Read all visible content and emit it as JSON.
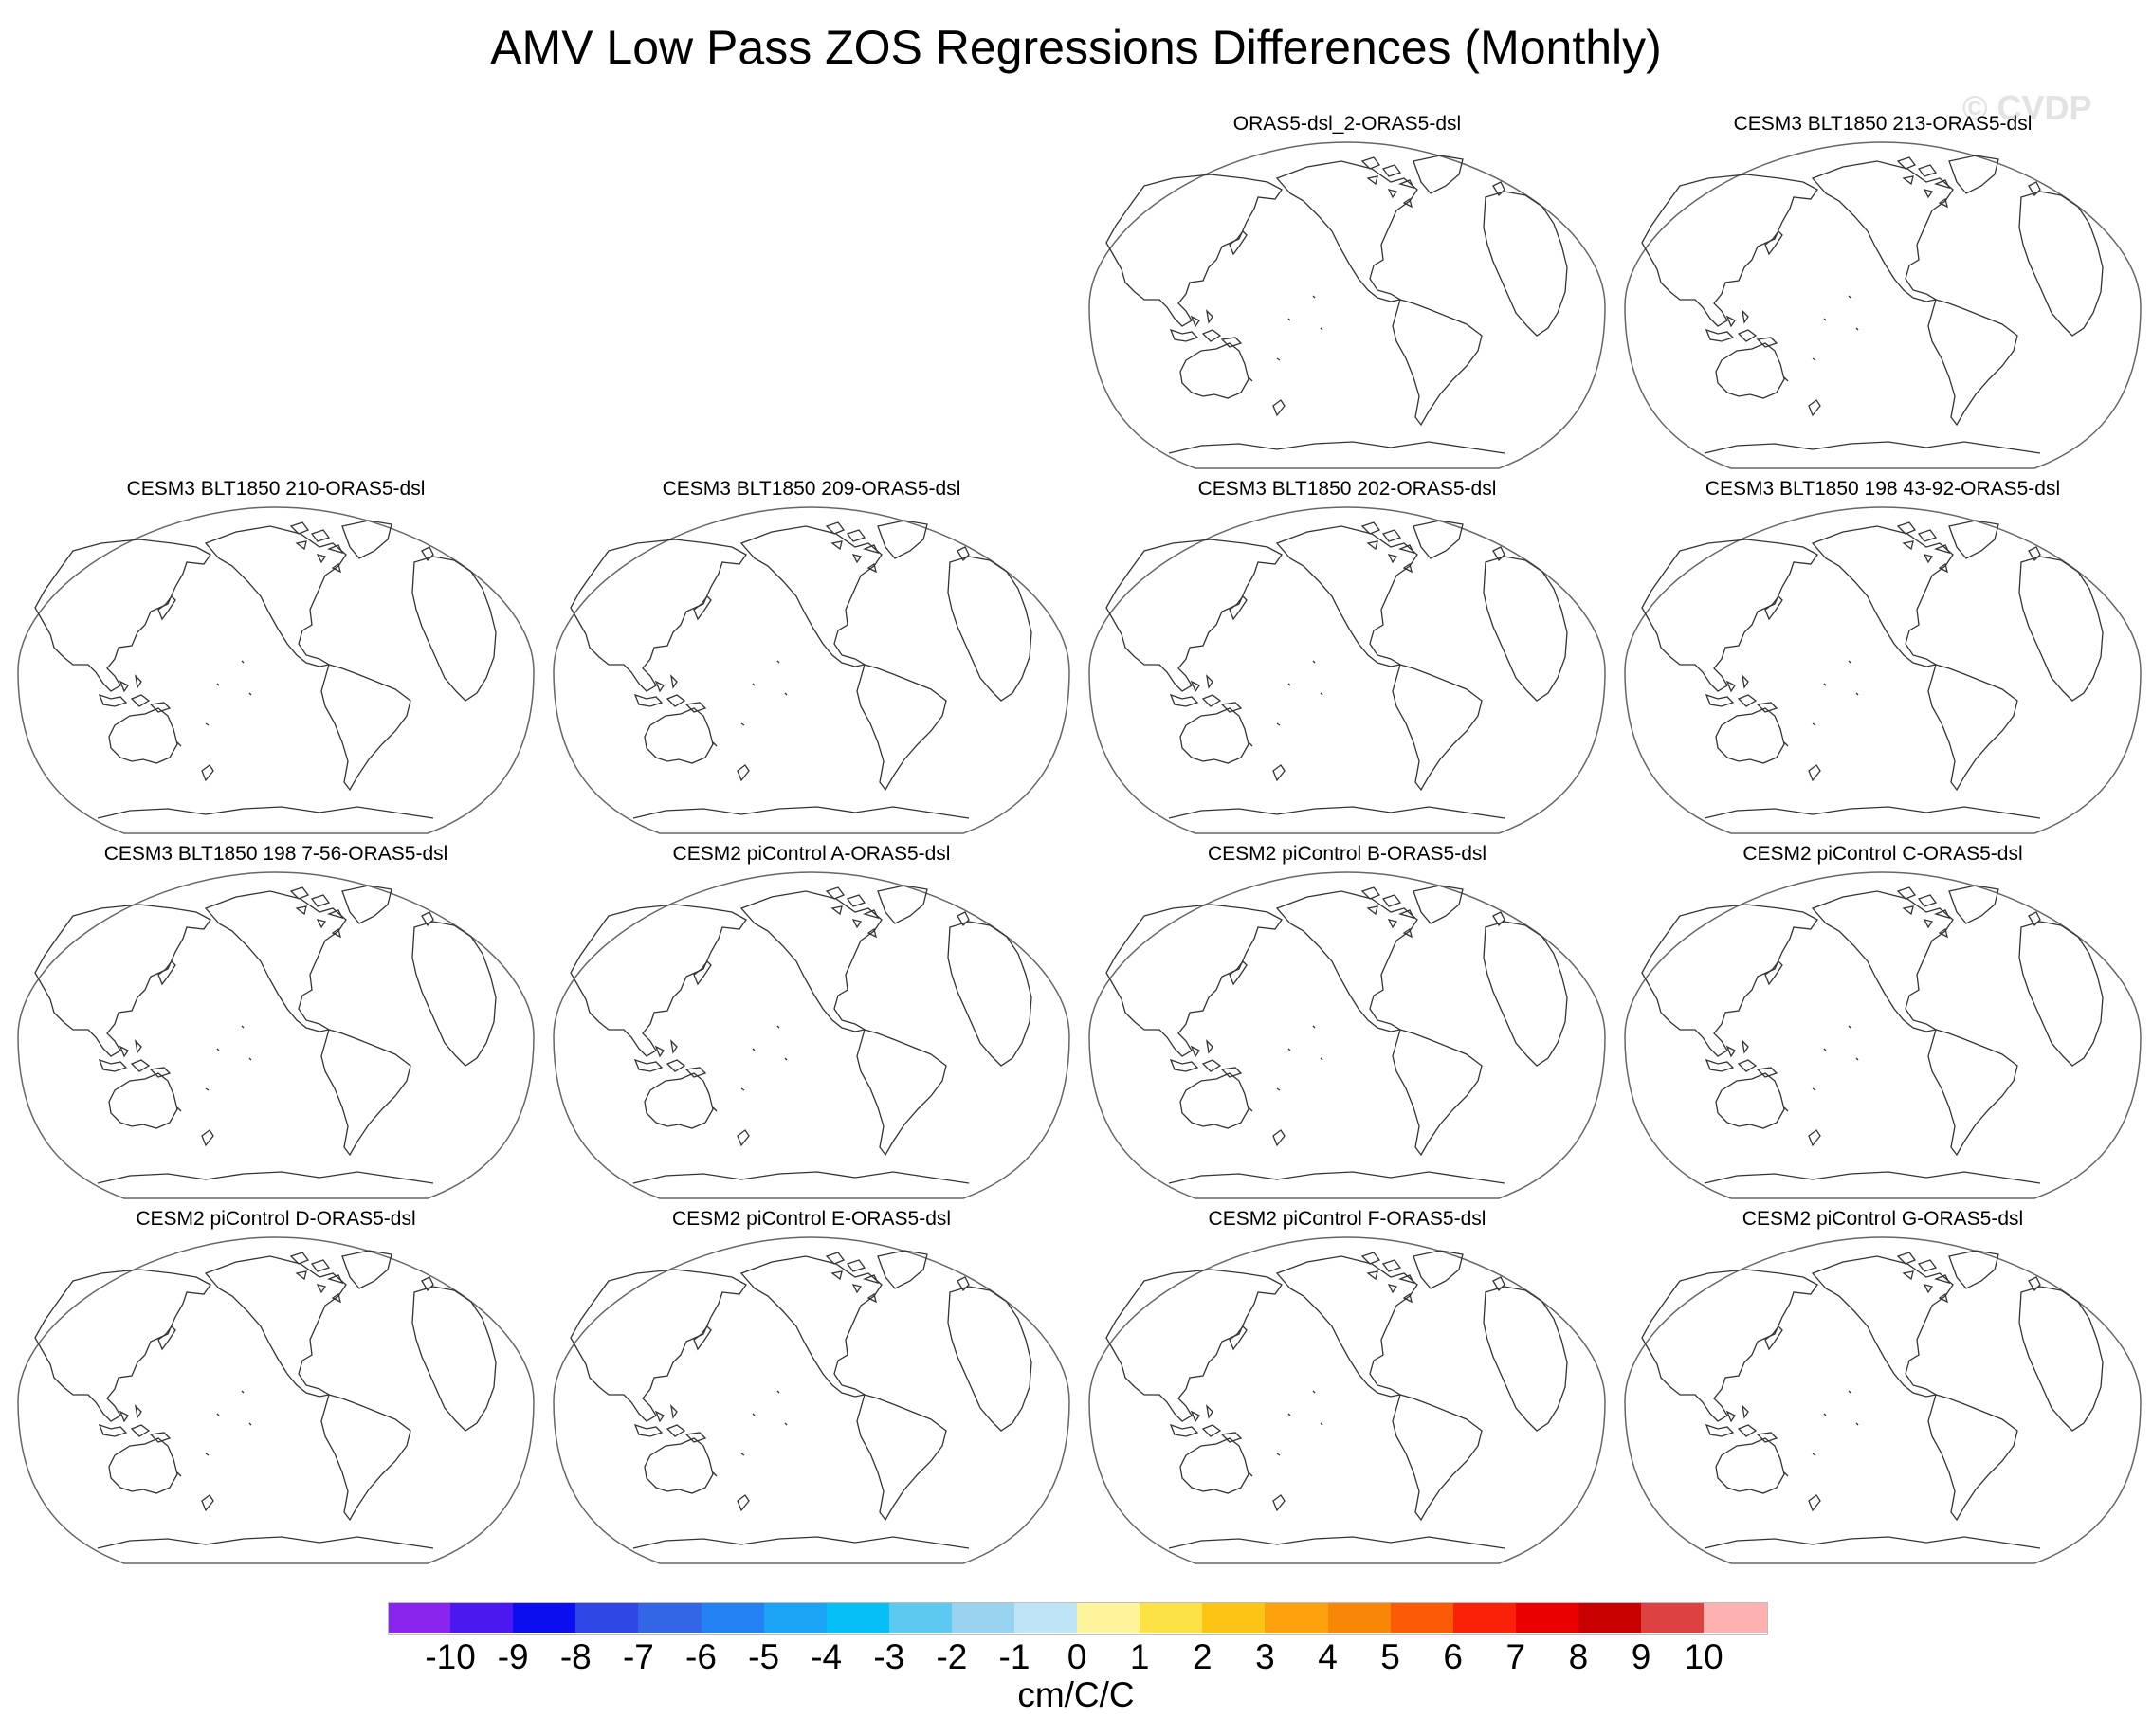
{
  "title": "AMV Low Pass ZOS Regressions Differences (Monthly)",
  "watermark": "© CVDP",
  "panels": [
    {
      "title": "ORAS5-dsl_2-ORAS5-dsl"
    },
    {
      "title": "CESM3 BLT1850 213-ORAS5-dsl"
    },
    {
      "title": "CESM3 BLT1850 210-ORAS5-dsl"
    },
    {
      "title": "CESM3 BLT1850 209-ORAS5-dsl"
    },
    {
      "title": "CESM3 BLT1850 202-ORAS5-dsl"
    },
    {
      "title": "CESM3 BLT1850 198 43-92-ORAS5-dsl"
    },
    {
      "title": "CESM3 BLT1850 198 7-56-ORAS5-dsl"
    },
    {
      "title": "CESM2 piControl A-ORAS5-dsl"
    },
    {
      "title": "CESM2 piControl B-ORAS5-dsl"
    },
    {
      "title": "CESM2 piControl C-ORAS5-dsl"
    },
    {
      "title": "CESM2 piControl D-ORAS5-dsl"
    },
    {
      "title": "CESM2 piControl E-ORAS5-dsl"
    },
    {
      "title": "CESM2 piControl F-ORAS5-dsl"
    },
    {
      "title": "CESM2 piControl G-ORAS5-dsl"
    }
  ],
  "colorbar": {
    "units": "cm/C/C",
    "ticks": [
      "-10",
      "-9",
      "-8",
      "-7",
      "-6",
      "-5",
      "-4",
      "-3",
      "-2",
      "-1",
      "0",
      "1",
      "2",
      "3",
      "4",
      "5",
      "6",
      "7",
      "8",
      "9",
      "10"
    ],
    "colors": [
      "#8a25ee",
      "#4c18f0",
      "#0d0ef0",
      "#2f47e5",
      "#3366e6",
      "#2381f2",
      "#1ba3f6",
      "#06bff6",
      "#5ccaf0",
      "#9ad3ef",
      "#bfe3f7",
      "#fdf49b",
      "#fde246",
      "#fcc514",
      "#fba20d",
      "#f88708",
      "#fb5b07",
      "#fb2008",
      "#eb0000",
      "#c90000",
      "#dc4242",
      "#fdb1b1"
    ]
  }
}
